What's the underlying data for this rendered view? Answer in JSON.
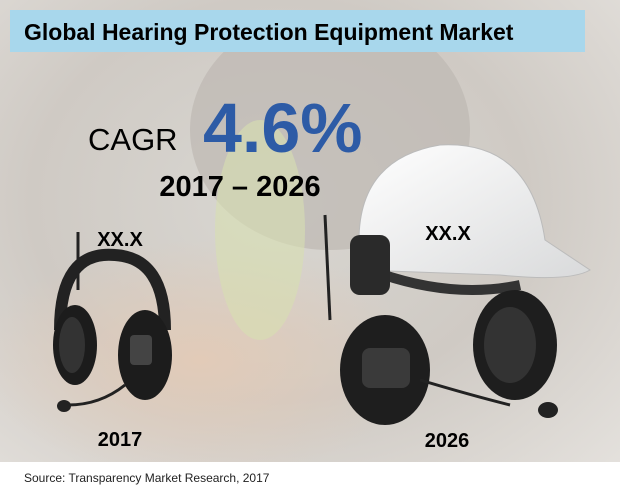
{
  "header": {
    "title": "Global Hearing Protection Equipment Market"
  },
  "cagr": {
    "label": "CAGR",
    "value": "4.6%",
    "period": "2017 – 2026"
  },
  "left": {
    "value": "XX.X",
    "year": "2017"
  },
  "right": {
    "value": "XX.X",
    "year": "2026"
  },
  "footer": {
    "source": "Source: Transparency Market Research, 2017"
  }
}
